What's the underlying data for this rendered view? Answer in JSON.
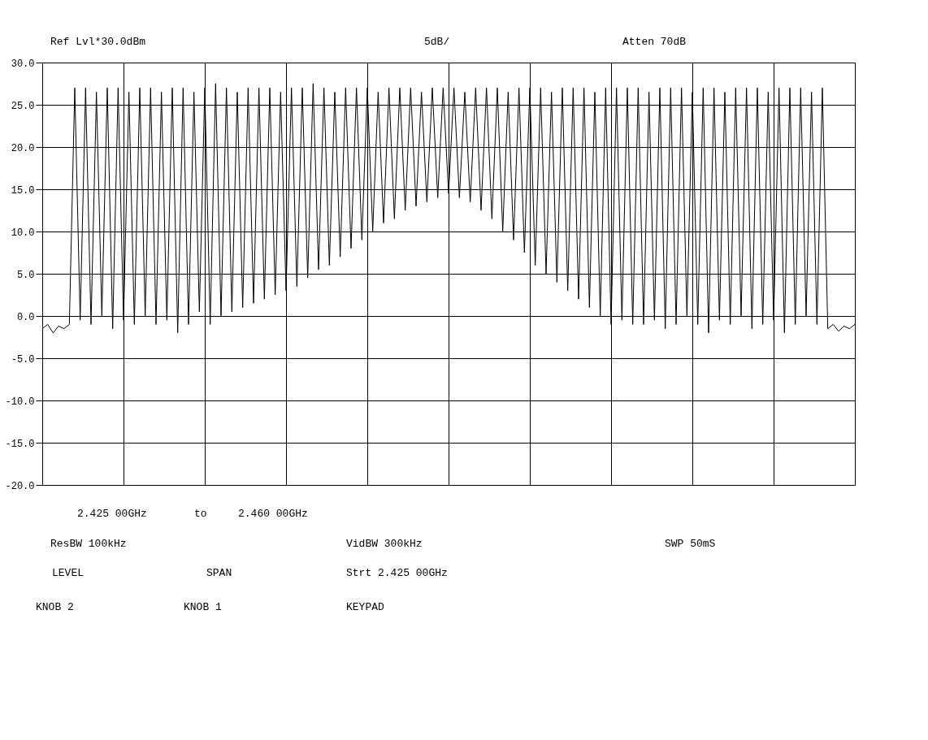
{
  "chart_data": {
    "type": "line",
    "categories": [
      null,
      null,
      null,
      null,
      null,
      null,
      null,
      null,
      null,
      null,
      null,
      null,
      null,
      null,
      null,
      null,
      null,
      null,
      null,
      null,
      null,
      null,
      null,
      null,
      null,
      null,
      null,
      null,
      null,
      null,
      null,
      null,
      null,
      null,
      null,
      null,
      null,
      null,
      null,
      null,
      null,
      null,
      null,
      null,
      null,
      null,
      null,
      null,
      null,
      null,
      null,
      null,
      null,
      null,
      null,
      null,
      null,
      null,
      null,
      null,
      null,
      null,
      null,
      null,
      null,
      null,
      null,
      null,
      null,
      null,
      null,
      null,
      null,
      null,
      null,
      null,
      null,
      null,
      null,
      null,
      null,
      null,
      null,
      null,
      null,
      null,
      null,
      null,
      null,
      null,
      null,
      null,
      null,
      null,
      null,
      null,
      null,
      null,
      null,
      null,
      null,
      null,
      null,
      null,
      null,
      null,
      null,
      null,
      null,
      null,
      null,
      null,
      null,
      null,
      null,
      null,
      null,
      null,
      null,
      null,
      null,
      null,
      null,
      null,
      null,
      null,
      null,
      null,
      null,
      null,
      null,
      null,
      null,
      null,
      null,
      null,
      null,
      null,
      null,
      null,
      null,
      null,
      null,
      null,
      null,
      null,
      null,
      null,
      null,
      null,
      null
    ],
    "values": [
      -1.5,
      -1,
      -2,
      -1.2,
      -1.5,
      -1,
      27,
      -0.5,
      27,
      -1,
      26.5,
      0,
      27,
      -1.5,
      27,
      -0.5,
      26.5,
      -1,
      27,
      0,
      27,
      -1,
      26.5,
      -0.5,
      27,
      -2,
      27,
      -1,
      26.5,
      0.5,
      27,
      -1,
      27.5,
      0,
      27,
      0.5,
      26.5,
      1,
      27,
      1.5,
      27,
      2,
      27,
      2.5,
      26.5,
      3,
      27,
      3.5,
      27,
      4.5,
      27.5,
      5.5,
      27,
      6,
      26.5,
      7,
      27,
      8,
      27,
      9,
      27,
      10,
      26.5,
      11,
      27,
      11.5,
      27,
      12.5,
      27,
      13,
      26.5,
      13.5,
      27,
      14,
      27,
      14.5,
      27,
      14,
      26.5,
      13.5,
      27,
      12.5,
      27,
      11.5,
      27,
      10,
      26.5,
      9,
      27,
      7.5,
      27,
      6,
      27,
      5,
      26.5,
      4,
      27,
      3,
      27,
      2,
      27,
      1,
      26.5,
      0,
      27,
      -1,
      27,
      -0.5,
      27,
      -1,
      27,
      -1,
      26.5,
      -0.5,
      27,
      -1.5,
      27,
      -1,
      27,
      0,
      26.5,
      -1,
      27,
      -2,
      27,
      -0.5,
      26.5,
      -1,
      27,
      0,
      27,
      -1.5,
      27,
      -1,
      26.5,
      -0.5,
      27,
      -2,
      27,
      -1,
      27,
      0,
      26.5,
      -1,
      27,
      -1.5,
      -1,
      -1.8,
      -1.2,
      -1.5,
      -1
    ],
    "color": "#000000",
    "ylim": [
      -20,
      30
    ],
    "yticks": [
      {
        "value": 30,
        "label": "30.0"
      },
      {
        "value": 25,
        "label": "25.0"
      },
      {
        "value": 20,
        "label": "20.0"
      },
      {
        "value": 15,
        "label": "15.0"
      },
      {
        "value": 10,
        "label": "10.0"
      },
      {
        "value": 5,
        "label": "5.0"
      },
      {
        "value": 0,
        "label": "0.0"
      },
      {
        "value": -5,
        "label": "-5.0"
      },
      {
        "value": -10,
        "label": "-10.0"
      },
      {
        "value": -15,
        "label": "-15.0"
      },
      {
        "value": -20,
        "label": "-20.0"
      }
    ],
    "grid": true,
    "tick_labels": "y",
    "marker": "none",
    "line_style": "solid",
    "annotations": [
      "Ref Lvl*30.0dBm",
      "5dB/",
      "Atten 70dB",
      "2.425 00GHz",
      "to",
      "2.460 00GHz",
      "ResBW 100kHz",
      "VidBW 300kHz",
      "SWP 50mS",
      "LEVEL",
      "SPAN",
      "Strt  2.425 00GHz",
      "KNOB 2",
      "KNOB 1",
      "KEYPAD"
    ]
  }
}
